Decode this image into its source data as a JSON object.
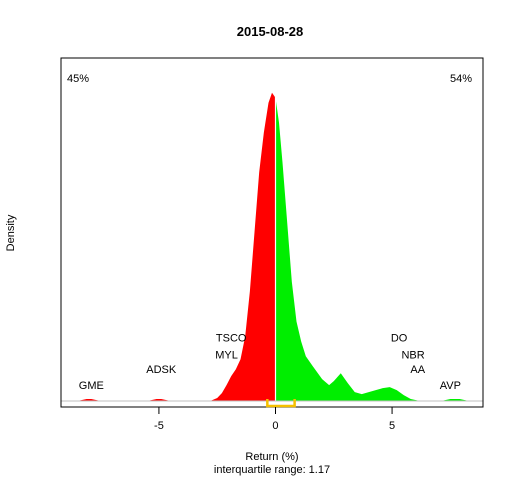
{
  "chart_data": {
    "type": "area",
    "title": "2015-08-28",
    "xlabel": "Return (%)",
    "ylabel": "Density",
    "subtitle": "interquartile range: 1.17",
    "xlim": [
      -9.2,
      8.9
    ],
    "ylim": [
      -0.006,
      0.345
    ],
    "xticks": [
      -5,
      0,
      5
    ],
    "xtick_labels": [
      "-5",
      "0",
      "5"
    ],
    "left_pct": "45%",
    "right_pct": "54%",
    "iqr_range": [
      -0.35,
      0.82
    ],
    "density": {
      "x": [
        -8.5,
        -8.3,
        -8.1,
        -7.9,
        -7.7,
        -7.5,
        -5.5,
        -5.3,
        -5.1,
        -4.9,
        -4.7,
        -4.5,
        -2.8,
        -2.5,
        -2.3,
        -2.1,
        -1.9,
        -1.7,
        -1.5,
        -1.3,
        -1.1,
        -0.9,
        -0.7,
        -0.5,
        -0.3,
        -0.15,
        0.0,
        0.15,
        0.3,
        0.5,
        0.7,
        0.9,
        1.1,
        1.3,
        1.6,
        2.0,
        2.3,
        2.5,
        2.8,
        3.1,
        3.4,
        3.7,
        4.0,
        4.3,
        4.6,
        4.9,
        5.2,
        5.5,
        5.8,
        6.2,
        6.5,
        7.1,
        7.3,
        7.5,
        7.7,
        7.9,
        8.1,
        8.3
      ],
      "y": [
        0.0,
        0.001,
        0.002,
        0.002,
        0.001,
        0.0,
        0.0,
        0.001,
        0.002,
        0.002,
        0.001,
        0.0,
        0.0,
        0.003,
        0.008,
        0.016,
        0.025,
        0.032,
        0.042,
        0.065,
        0.11,
        0.17,
        0.23,
        0.27,
        0.3,
        0.31,
        0.305,
        0.28,
        0.24,
        0.18,
        0.12,
        0.08,
        0.06,
        0.045,
        0.035,
        0.022,
        0.016,
        0.02,
        0.028,
        0.018,
        0.009,
        0.007,
        0.009,
        0.011,
        0.013,
        0.014,
        0.011,
        0.006,
        0.002,
        0.0,
        0.0,
        0.0,
        0.001,
        0.002,
        0.002,
        0.002,
        0.001,
        0.0
      ]
    },
    "labels": [
      {
        "text": "GME",
        "x": -7.9,
        "y": 0.012
      },
      {
        "text": "ADSK",
        "x": -4.9,
        "y": 0.028
      },
      {
        "text": "TSCO",
        "x": -1.9,
        "y": 0.06
      },
      {
        "text": "MYL",
        "x": -2.1,
        "y": 0.043
      },
      {
        "text": "DO",
        "x": 5.3,
        "y": 0.06
      },
      {
        "text": "NBR",
        "x": 5.9,
        "y": 0.043
      },
      {
        "text": "AA",
        "x": 6.1,
        "y": 0.028
      },
      {
        "text": "AVP",
        "x": 7.5,
        "y": 0.012
      }
    ],
    "colors": {
      "negative": "#ff0000",
      "positive": "#00ee00",
      "iqr": "#f5c000",
      "left_pct": "#ff0000",
      "right_pct": "#00a000"
    }
  }
}
